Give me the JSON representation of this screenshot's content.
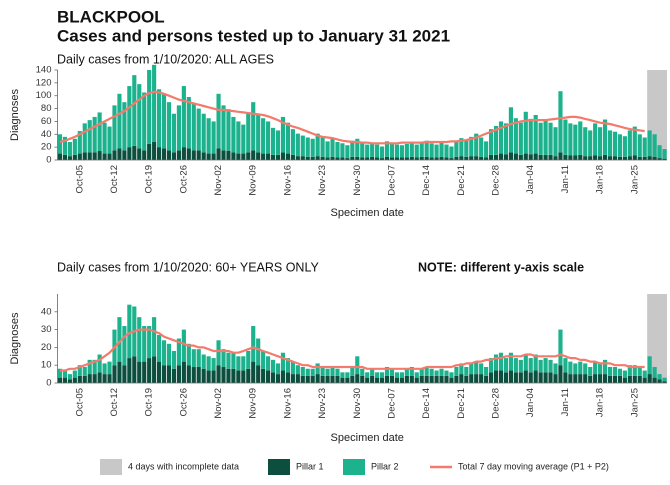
{
  "title": "BLACKPOOL",
  "subtitle": "Cases and persons tested up to January 31 2021",
  "incomplete_label": "4 days with incomplete data",
  "incomplete_color": "#c8c8c8",
  "chart_data": [
    {
      "type": "bar",
      "stacked": true,
      "incomplete_days": 4,
      "subtitle": "Daily cases from 1/10/2020: ALL AGES",
      "xlabel": "Specimen date",
      "ylabel": "Diagnoses",
      "ylim": [
        0,
        140
      ],
      "yticks": [
        0,
        20,
        40,
        60,
        80,
        100,
        120,
        140
      ],
      "categories": [
        null,
        null,
        null,
        null,
        "Oct-05",
        null,
        null,
        null,
        null,
        null,
        null,
        "Oct-12",
        null,
        null,
        null,
        null,
        null,
        null,
        "Oct-19",
        null,
        null,
        null,
        null,
        null,
        null,
        "Oct-26",
        null,
        null,
        null,
        null,
        null,
        null,
        "Nov-02",
        null,
        null,
        null,
        null,
        null,
        null,
        "Nov-09",
        null,
        null,
        null,
        null,
        null,
        null,
        "Nov-16",
        null,
        null,
        null,
        null,
        null,
        null,
        "Nov-23",
        null,
        null,
        null,
        null,
        null,
        null,
        "Nov-30",
        null,
        null,
        null,
        null,
        null,
        null,
        "Dec-07",
        null,
        null,
        null,
        null,
        null,
        null,
        "Dec-14",
        null,
        null,
        null,
        null,
        null,
        null,
        "Dec-21",
        null,
        null,
        null,
        null,
        null,
        null,
        "Dec-28",
        null,
        null,
        null,
        null,
        null,
        null,
        "Jan-04",
        null,
        null,
        null,
        null,
        null,
        null,
        "Jan-11",
        null,
        null,
        null,
        null,
        null,
        null,
        "Jan-18",
        null,
        null,
        null,
        null,
        null,
        null,
        "Jan-25",
        null,
        null,
        null,
        null,
        null,
        null
      ],
      "series": [
        {
          "name": "Pillar 1",
          "color": "#0d4f3e",
          "values": [
            10,
            8,
            6,
            8,
            10,
            12,
            12,
            12,
            14,
            10,
            10,
            15,
            18,
            15,
            20,
            22,
            18,
            15,
            25,
            28,
            20,
            18,
            15,
            12,
            15,
            20,
            18,
            15,
            15,
            12,
            10,
            10,
            18,
            15,
            14,
            12,
            10,
            10,
            12,
            15,
            12,
            10,
            10,
            8,
            8,
            12,
            10,
            8,
            6,
            6,
            5,
            5,
            6,
            5,
            4,
            5,
            4,
            4,
            3,
            5,
            5,
            4,
            4,
            5,
            4,
            3,
            5,
            4,
            4,
            4,
            4,
            5,
            4,
            5,
            5,
            4,
            4,
            5,
            4,
            3,
            5,
            6,
            5,
            6,
            6,
            5,
            4,
            8,
            8,
            10,
            9,
            12,
            10,
            8,
            10,
            9,
            10,
            8,
            8,
            8,
            6,
            12,
            8,
            7,
            7,
            8,
            6,
            6,
            7,
            6,
            8,
            6,
            6,
            5,
            5,
            6,
            7,
            5,
            5,
            6,
            5,
            3,
            2
          ]
        },
        {
          "name": "Pillar 2",
          "color": "#1db28e",
          "values": [
            30,
            28,
            22,
            25,
            35,
            45,
            50,
            55,
            60,
            48,
            42,
            70,
            85,
            75,
            95,
            110,
            100,
            90,
            115,
            120,
            90,
            85,
            75,
            60,
            70,
            95,
            80,
            72,
            65,
            60,
            55,
            50,
            85,
            70,
            65,
            55,
            50,
            45,
            62,
            75,
            60,
            55,
            50,
            42,
            38,
            55,
            48,
            40,
            35,
            32,
            30,
            28,
            35,
            30,
            25,
            28,
            24,
            22,
            20,
            25,
            28,
            22,
            20,
            22,
            20,
            18,
            24,
            22,
            20,
            19,
            21,
            23,
            20,
            22,
            25,
            22,
            20,
            22,
            20,
            18,
            24,
            28,
            26,
            30,
            35,
            30,
            25,
            40,
            45,
            50,
            48,
            70,
            55,
            50,
            65,
            55,
            60,
            50,
            55,
            50,
            45,
            95,
            55,
            50,
            48,
            52,
            45,
            40,
            50,
            45,
            55,
            40,
            38,
            35,
            32,
            40,
            45,
            35,
            30,
            40,
            35,
            20,
            15
          ]
        },
        {
          "name": "Total 7 day moving average (P1 + P2)",
          "color": "#f27b6d",
          "type": "line",
          "values": [
            28,
            30,
            33,
            36,
            40,
            44,
            48,
            52,
            56,
            60,
            64,
            68,
            72,
            76,
            82,
            88,
            94,
            100,
            104,
            106,
            105,
            103,
            100,
            97,
            94,
            92,
            90,
            88,
            86,
            84,
            82,
            80,
            78,
            78,
            77,
            76,
            75,
            74,
            73,
            72,
            71,
            70,
            68,
            65,
            62,
            58,
            55,
            52,
            50,
            47,
            44,
            41,
            38,
            36,
            35,
            34,
            32,
            30,
            29,
            28,
            28,
            27,
            27,
            26,
            26,
            26,
            26,
            26,
            26,
            27,
            27,
            27,
            27,
            27,
            28,
            28,
            28,
            28,
            28,
            29,
            29,
            30,
            31,
            33,
            35,
            38,
            41,
            44,
            47,
            50,
            53,
            56,
            58,
            60,
            61,
            62,
            62,
            62,
            62,
            63,
            64,
            65,
            66,
            67,
            67,
            66,
            64,
            62,
            60,
            58,
            57,
            56,
            54,
            52,
            50,
            48,
            47,
            46,
            45,
            null,
            null,
            null,
            null
          ]
        }
      ]
    },
    {
      "type": "bar",
      "stacked": true,
      "incomplete_days": 4,
      "subtitle": "Daily cases from 1/10/2020: 60+ YEARS ONLY",
      "note": "NOTE: different y-axis scale",
      "xlabel": "Specimen date",
      "ylabel": "Diagnoses",
      "ylim": [
        0,
        50
      ],
      "yticks": [
        0,
        10,
        20,
        30,
        40
      ],
      "categories": [
        null,
        null,
        null,
        null,
        "Oct-05",
        null,
        null,
        null,
        null,
        null,
        null,
        "Oct-12",
        null,
        null,
        null,
        null,
        null,
        null,
        "Oct-19",
        null,
        null,
        null,
        null,
        null,
        null,
        "Oct-26",
        null,
        null,
        null,
        null,
        null,
        null,
        "Nov-02",
        null,
        null,
        null,
        null,
        null,
        null,
        "Nov-09",
        null,
        null,
        null,
        null,
        null,
        null,
        "Nov-16",
        null,
        null,
        null,
        null,
        null,
        null,
        "Nov-23",
        null,
        null,
        null,
        null,
        null,
        null,
        "Nov-30",
        null,
        null,
        null,
        null,
        null,
        null,
        "Dec-07",
        null,
        null,
        null,
        null,
        null,
        null,
        "Dec-14",
        null,
        null,
        null,
        null,
        null,
        null,
        "Dec-21",
        null,
        null,
        null,
        null,
        null,
        null,
        "Dec-28",
        null,
        null,
        null,
        null,
        null,
        null,
        "Jan-04",
        null,
        null,
        null,
        null,
        null,
        null,
        "Jan-11",
        null,
        null,
        null,
        null,
        null,
        null,
        "Jan-18",
        null,
        null,
        null,
        null,
        null,
        null,
        "Jan-25",
        null,
        null,
        null,
        null,
        null,
        null
      ],
      "series": [
        {
          "name": "Pillar 1",
          "color": "#0d4f3e",
          "values": [
            3,
            3,
            2,
            3,
            4,
            4,
            5,
            5,
            6,
            5,
            5,
            10,
            12,
            10,
            14,
            15,
            12,
            12,
            14,
            15,
            12,
            10,
            10,
            8,
            10,
            12,
            10,
            9,
            9,
            8,
            7,
            7,
            10,
            9,
            8,
            8,
            7,
            7,
            8,
            12,
            10,
            8,
            7,
            6,
            5,
            7,
            6,
            5,
            5,
            4,
            4,
            4,
            5,
            4,
            4,
            4,
            4,
            3,
            3,
            4,
            5,
            4,
            3,
            4,
            3,
            3,
            4,
            4,
            3,
            3,
            4,
            4,
            3,
            4,
            4,
            4,
            4,
            4,
            4,
            3,
            4,
            5,
            4,
            5,
            5,
            5,
            4,
            6,
            7,
            7,
            6,
            7,
            6,
            6,
            7,
            6,
            7,
            6,
            6,
            6,
            5,
            10,
            6,
            5,
            5,
            5,
            5,
            4,
            5,
            5,
            5,
            4,
            4,
            4,
            3,
            4,
            4,
            4,
            3,
            5,
            3,
            2,
            1
          ]
        },
        {
          "name": "Pillar 2",
          "color": "#1db28e",
          "values": [
            5,
            4,
            3,
            4,
            6,
            5,
            8,
            8,
            10,
            6,
            7,
            20,
            25,
            22,
            30,
            28,
            25,
            20,
            18,
            22,
            15,
            14,
            12,
            10,
            15,
            18,
            12,
            10,
            10,
            8,
            8,
            7,
            14,
            10,
            9,
            9,
            8,
            8,
            10,
            20,
            15,
            10,
            8,
            7,
            6,
            10,
            8,
            7,
            5,
            5,
            4,
            4,
            6,
            5,
            4,
            5,
            4,
            3,
            3,
            5,
            10,
            4,
            3,
            4,
            3,
            3,
            5,
            4,
            3,
            3,
            4,
            5,
            3,
            4,
            5,
            4,
            3,
            4,
            3,
            3,
            5,
            6,
            5,
            6,
            7,
            6,
            5,
            8,
            9,
            10,
            8,
            10,
            8,
            7,
            9,
            8,
            9,
            7,
            8,
            7,
            6,
            20,
            8,
            7,
            6,
            7,
            6,
            5,
            7,
            6,
            8,
            5,
            5,
            4,
            4,
            6,
            6,
            5,
            4,
            10,
            6,
            3,
            2
          ]
        },
        {
          "name": "Total 7 day moving average (P1 + P2)",
          "color": "#f27b6d",
          "type": "line",
          "values": [
            7,
            7,
            8,
            8,
            9,
            10,
            11,
            12,
            13,
            15,
            17,
            20,
            23,
            26,
            28,
            29,
            30,
            30,
            30,
            29,
            28,
            26,
            25,
            24,
            23,
            22,
            21,
            21,
            20,
            20,
            19,
            18,
            18,
            18,
            18,
            17,
            17,
            18,
            19,
            20,
            19,
            18,
            17,
            16,
            15,
            14,
            13,
            12,
            11,
            10,
            10,
            9,
            9,
            9,
            9,
            9,
            9,
            9,
            9,
            9,
            9,
            9,
            8,
            8,
            8,
            8,
            8,
            8,
            8,
            8,
            8,
            8,
            8,
            8,
            9,
            9,
            9,
            9,
            9,
            9,
            10,
            10,
            11,
            11,
            12,
            12,
            13,
            13,
            14,
            14,
            15,
            15,
            15,
            15,
            16,
            16,
            15,
            15,
            15,
            15,
            15,
            16,
            15,
            14,
            14,
            13,
            13,
            12,
            12,
            11,
            11,
            11,
            10,
            10,
            10,
            9,
            9,
            9,
            9,
            null,
            null,
            null,
            null
          ]
        }
      ]
    }
  ]
}
